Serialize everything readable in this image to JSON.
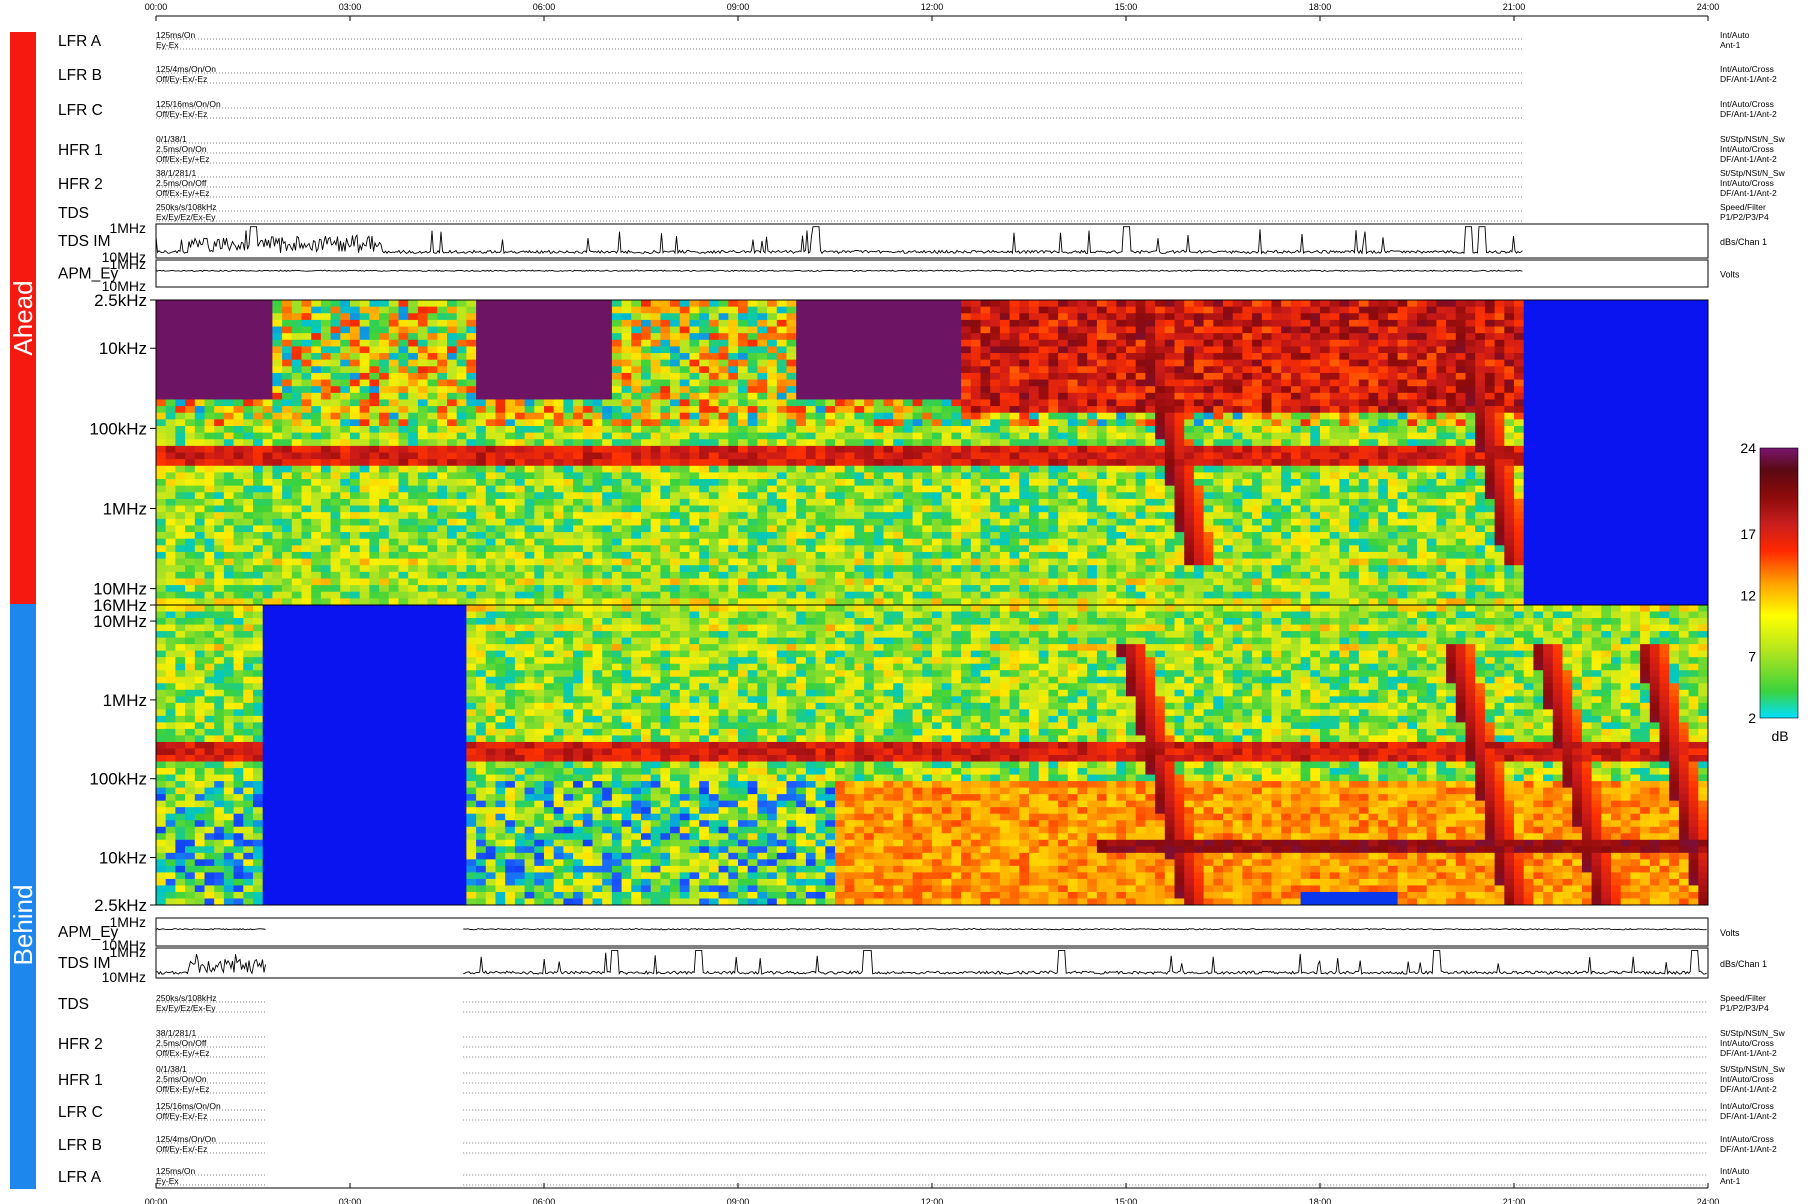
{
  "chart_data": {
    "type": "heatmap",
    "time_axis": {
      "ticks": [
        "00:00",
        "03:00",
        "06:00",
        "09:00",
        "12:00",
        "15:00",
        "18:00",
        "21:00",
        "24:00"
      ],
      "range_hours": [
        0,
        24
      ]
    },
    "side_labels": {
      "ahead": "Ahead",
      "behind": "Behind"
    },
    "colorbar": {
      "ticks": [
        "24",
        "17",
        "12",
        "7",
        "2"
      ],
      "tick_values": [
        24,
        17,
        12,
        7,
        2
      ],
      "range": [
        2,
        24
      ],
      "unit": "dB"
    },
    "spectrogram_ahead": {
      "y_ticks": [
        "2.5kHz",
        "10kHz",
        "100kHz",
        "1MHz",
        "10MHz",
        "16MHz"
      ],
      "y_tick_values": [
        2500.0,
        10000.0,
        100000.0,
        1000000.0,
        10000000.0,
        16000000.0
      ],
      "y_range_hz": [
        2500,
        16000000
      ],
      "y_scale": "log",
      "y_direction": "frequency increases downward",
      "data_gap_hours": [
        [
          21.15,
          24
        ]
      ],
      "bursts_hours": [
        15.2,
        20.1
      ]
    },
    "spectrogram_behind": {
      "y_ticks": [
        "10MHz",
        "1MHz",
        "100kHz",
        "10kHz",
        "2.5kHz"
      ],
      "y_tick_values": [
        10000000.0,
        1000000.0,
        100000.0,
        10000.0,
        2500.0
      ],
      "y_range_hz": [
        2500,
        16000000
      ],
      "y_scale": "log",
      "y_direction": "frequency increases upward",
      "data_gap_hours": [
        [
          1.7,
          4.75
        ]
      ],
      "bursts_hours": [
        15.0,
        20.0,
        21.4,
        23.0
      ]
    },
    "ahead_tracks": [
      {
        "name": "LFR A",
        "settings": [
          "125ms/On",
          "Ey-Ex"
        ],
        "right": [
          "Int/Auto",
          "Ant-1"
        ]
      },
      {
        "name": "LFR B",
        "settings": [
          "125/4ms/On/On",
          "Off/Ey-Ex/-Ez"
        ],
        "right": [
          "Int/Auto/Cross",
          "DF/Ant-1/Ant-2"
        ]
      },
      {
        "name": "LFR C",
        "settings": [
          "125/16ms/On/On",
          "Off/Ey-Ex/-Ez"
        ],
        "right": [
          "Int/Auto/Cross",
          "DF/Ant-1/Ant-2"
        ]
      },
      {
        "name": "HFR 1",
        "settings": [
          "0/1/38/1",
          "2.5ms/On/On",
          "Off/Ex-Ey/+Ez"
        ],
        "right": [
          "St/Stp/NSt/N_Sw",
          "Int/Auto/Cross",
          "DF/Ant-1/Ant-2"
        ]
      },
      {
        "name": "HFR 2",
        "settings": [
          "38/1/281/1",
          "2.5ms/On/Off",
          "Off/Ex-Ey/+Ez"
        ],
        "right": [
          "St/Stp/NSt/N_Sw",
          "Int/Auto/Cross",
          "DF/Ant-1/Ant-2"
        ]
      },
      {
        "name": "TDS",
        "settings": [
          "250ks/s/108kHz",
          "Ex/Ey/Ez/Ex-Ey"
        ],
        "right": [
          "Speed/Filter",
          "P1/P2/P3/P4"
        ]
      }
    ],
    "behind_tracks": [
      {
        "name": "TDS",
        "settings": [
          "250ks/s/108kHz",
          "Ex/Ey/Ez/Ex-Ey"
        ],
        "right": [
          "Speed/Filter",
          "P1/P2/P3/P4"
        ]
      },
      {
        "name": "HFR 2",
        "settings": [
          "38/1/281/1",
          "2.5ms/On/Off",
          "Off/Ex-Ey/+Ez"
        ],
        "right": [
          "St/Stp/NSt/N_Sw",
          "Int/Auto/Cross",
          "DF/Ant-1/Ant-2"
        ]
      },
      {
        "name": "HFR 1",
        "settings": [
          "0/1/38/1",
          "2.5ms/On/On",
          "Off/Ex-Ey/+Ez"
        ],
        "right": [
          "St/Stp/NSt/N_Sw",
          "Int/Auto/Cross",
          "DF/Ant-1/Ant-2"
        ]
      },
      {
        "name": "LFR C",
        "settings": [
          "125/16ms/On/On",
          "Off/Ey-Ex/-Ez"
        ],
        "right": [
          "Int/Auto/Cross",
          "DF/Ant-1/Ant-2"
        ]
      },
      {
        "name": "LFR B",
        "settings": [
          "125/4ms/On/On",
          "Off/Ey-Ex/-Ez"
        ],
        "right": [
          "Int/Auto/Cross",
          "DF/Ant-1/Ant-2"
        ]
      },
      {
        "name": "LFR A",
        "settings": [
          "125ms/On",
          "Ey-Ex"
        ],
        "right": [
          "Int/Auto",
          "Ant-1"
        ]
      }
    ],
    "ahead_coverage_hours": [
      [
        0,
        21.15
      ]
    ],
    "behind_coverage_hours": [
      [
        0,
        1.7
      ],
      [
        4.75,
        24
      ]
    ],
    "ahead_tds_im": {
      "name": "TDS IM",
      "y_ticks": [
        "1MHz",
        "10MHz"
      ],
      "right": "dBs/Chan 1"
    },
    "ahead_apm": {
      "name": "APM_Ey",
      "y_ticks": [
        "1MHz",
        "10MHz"
      ],
      "right": "Volts"
    },
    "behind_apm": {
      "name": "APM_Ey",
      "y_ticks": [
        "1MHz",
        "10MHz"
      ],
      "right": "Volts"
    },
    "behind_tds_im": {
      "name": "TDS IM",
      "y_ticks": [
        "1MHz",
        "10MHz"
      ],
      "right": "dBs/Chan 1"
    }
  }
}
